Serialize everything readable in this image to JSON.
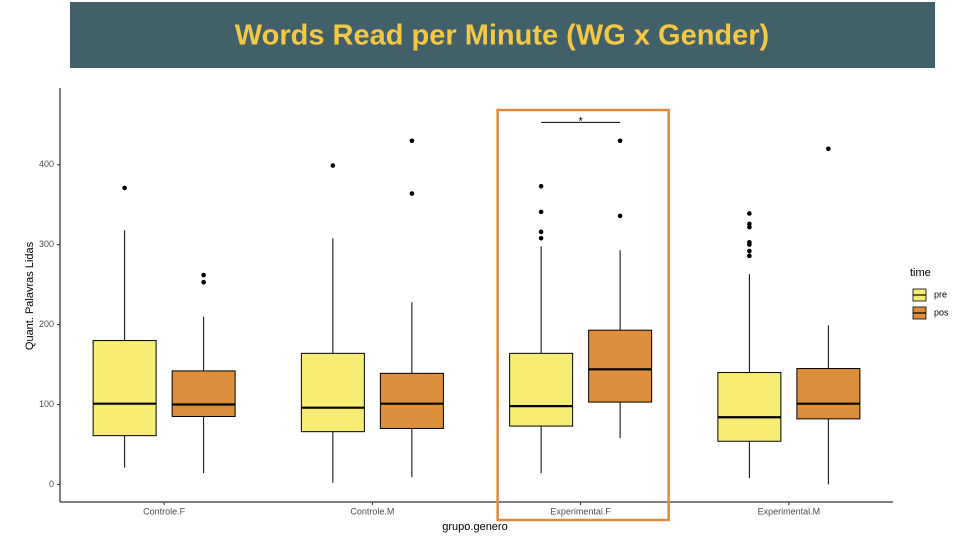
{
  "chart_data": {
    "type": "boxplot",
    "title": "Words Read per Minute (WG x Gender)",
    "x_label": "grupo.genero",
    "y_label": "Quant. Palavras Lidas",
    "legend_title": "time",
    "legend_position": "right",
    "grid": false,
    "categories": [
      "Controle.F",
      "Controle.M",
      "Experimental.F",
      "Experimental.M"
    ],
    "ylim": [
      -22,
      496
    ],
    "yticks": [
      0,
      100,
      200,
      300,
      400
    ],
    "annotation": {
      "text": "*",
      "y": 453
    },
    "series": [
      {
        "name": "pre",
        "color": "#f8ed74",
        "boxes": [
          {
            "whislo": 21,
            "q1": 61,
            "med": 101,
            "q3": 180,
            "whishi": 318,
            "fliers": [
              371
            ]
          },
          {
            "whislo": 2,
            "q1": 66,
            "med": 96,
            "q3": 164,
            "whishi": 308,
            "fliers": [
              399
            ]
          },
          {
            "whislo": 14,
            "q1": 73,
            "med": 98,
            "q3": 164,
            "whishi": 298,
            "fliers": [
              373,
              341,
              316,
              308
            ]
          },
          {
            "whislo": 8,
            "q1": 54,
            "med": 84,
            "q3": 140,
            "whishi": 263,
            "fliers": [
              339,
              326,
              322,
              303,
              300,
              292,
              286
            ]
          }
        ]
      },
      {
        "name": "pos",
        "color": "#dd8e3b",
        "boxes": [
          {
            "whislo": 14,
            "q1": 85,
            "med": 100,
            "q3": 142,
            "whishi": 210,
            "fliers": [
              262,
              253
            ]
          },
          {
            "whislo": 9,
            "q1": 70,
            "med": 101,
            "q3": 139,
            "whishi": 228,
            "fliers": [
              364,
              430
            ]
          },
          {
            "whislo": 58,
            "q1": 103,
            "med": 144,
            "q3": 193,
            "whishi": 293,
            "fliers": [
              336,
              430
            ]
          },
          {
            "whislo": 0,
            "q1": 82,
            "med": 101,
            "q3": 145,
            "whishi": 199,
            "fliers": [
              420
            ]
          }
        ]
      }
    ]
  }
}
